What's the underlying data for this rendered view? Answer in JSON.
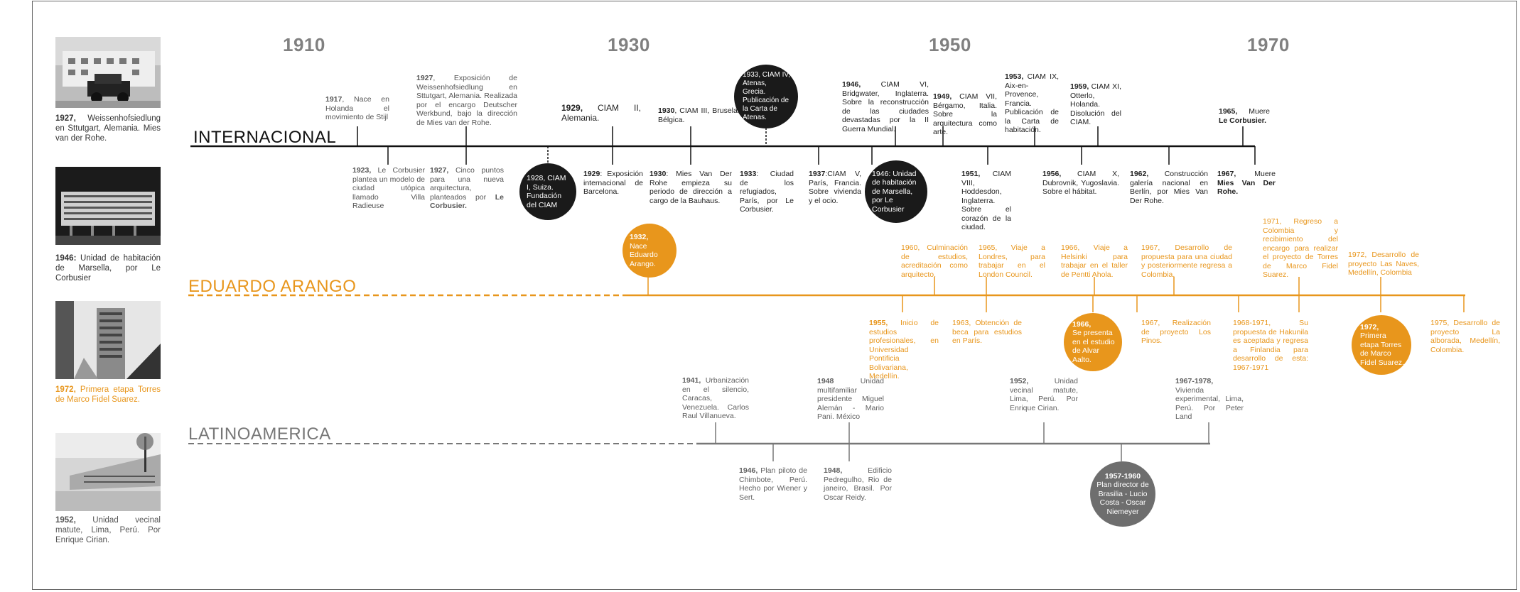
{
  "decades": [
    "1910",
    "1930",
    "1950",
    "1970"
  ],
  "sections": {
    "internacional": "INTERNACIONAL",
    "arango": "EDUARDO ARANGO",
    "latinoamerica": "LATINOAMERICA"
  },
  "colors": {
    "black": "#1a1a1a",
    "orange": "#e8961c",
    "grey": "#6e6e6e"
  },
  "captions": [
    {
      "year": "1927,",
      "text": " Weissenhofsiedlung en Sttutgart, Alemania. Mies van der Rohe."
    },
    {
      "year": "1946:",
      "text": " Unidad de habitación de Marsella, por Le Corbusier"
    },
    {
      "year": "1972,",
      "text": " Primera etapa Torres de Marco Fidel Suarez."
    },
    {
      "year": "1952,",
      "text": " Unidad vecinal matute, Lima, Perú. Por Enrique Cirian."
    }
  ],
  "internacional_top": [
    {
      "year": "1917",
      "text": ", Nace en Holanda el movimiento de Stijl"
    },
    {
      "year": "1927",
      "text": ", Exposición de Weissenhofsiedlung en Sttutgart, Alemania. Realizada por el encargo Deutscher Werkbund, bajo la dirección de Mies van der Rohe."
    },
    {
      "year": "1929,",
      "text": " CIAM II, Alemania."
    },
    {
      "year": "1930",
      "text": ", CIAM III, Bruselas, Bélgica."
    },
    {
      "year": "1946,",
      "text": " CIAM VI, Bridgwater, Inglaterra. Sobre la reconstrucción de las ciudades devastadas por la II Guerra Mundial."
    },
    {
      "year": "1949,",
      "text": " CIAM VII, Bérgamo, Italia. Sobre la arquitectura como arte."
    },
    {
      "year": "1953,",
      "text": " CIAM IX, Aix-en-Provence, Francia. Publicación de la Carta de habitación."
    },
    {
      "year": "1959,",
      "text": " CIAM XI, Otterlo, Holanda. Disolución del CIAM."
    },
    {
      "year": "1965,",
      "text": " Muere ",
      "bold": "Le Corbusier."
    }
  ],
  "internacional_bottom": [
    {
      "year": "1923,",
      "text": " Le Corbusier plantea un modelo de ciudad utópica llamado Villa Radieuse"
    },
    {
      "year": "1927,",
      "text": " Cinco puntos para una nueva arquitectura, planteados por ",
      "bold": "Le Corbusier."
    },
    {
      "year": "1929",
      "text": ": Exposición internacional de Barcelona."
    },
    {
      "year": "1930",
      "text": ": Mies Van Der Rohe empieza su periodo de dirección a cargo de la Bauhaus."
    },
    {
      "year": "1933",
      "text": ": Ciudad de los refugiados, París, por Le Corbusier."
    },
    {
      "year": "1937",
      "text": ":CIAM V, París, Francia. Sobre vivienda y el ocio."
    },
    {
      "year": "1951,",
      "text": " CIAM VIII, Hoddesdon, Inglaterra. Sobre el corazón de la ciudad."
    },
    {
      "year": "1956,",
      "text": " CIAM X, Dubrovnik, Yugoslavia. Sobre el hábitat."
    },
    {
      "year": "1962,",
      "text": " Construcción galería nacional en Berlín, por Mies Van Der Rohe."
    },
    {
      "year": "1967,",
      "text": " Muere ",
      "bold": "Mies Van Der Rohe."
    }
  ],
  "internacional_circles": [
    {
      "text": "1933, CIAM IV, Atenas, Grecia. Publicación de la Carta de Atenas."
    },
    {
      "text": "1928, CIAM I, Suiza. Fundación del CIAM"
    },
    {
      "text": "1946: Unidad de habitación de Marsella, por Le Corbusier"
    }
  ],
  "arango_top": [
    {
      "text": "1960, Culminación de estudios, acreditación como arquitecto."
    },
    {
      "text": "1965, Viaje a Londres, para trabajar en el London Council."
    },
    {
      "text": "1966, Viaje a Helsinki para trabajar en el taller de Pentti Ahola."
    },
    {
      "text": "1967, Desarrollo de propuesta para una ciudad y posteriormente regresa a Colombia."
    },
    {
      "text": "1971, Regreso a Colombia y recibimiento del encargo para realizar el proyecto de Torres de Marco Fidel Suarez."
    },
    {
      "text": "1972, Desarrollo de proyecto Las Naves, Medellín, Colombia"
    }
  ],
  "arango_bottom": [
    {
      "year": "1955,",
      "text": " Inicio de estudios profesionales, en Universidad Pontificia Bolivariana, Medellín."
    },
    {
      "text": "1963, Obtención de beca para estudios en París."
    },
    {
      "text": "1967, Realización de proyecto Los Pinos."
    },
    {
      "text": "1968-1971, Su propuesta de Hakunila es aceptada y regresa a Finlandia para desarrollo de esta: 1967-1971"
    },
    {
      "text": "1975, Desarrollo de proyecto La alborada, Medellín, Colombia."
    }
  ],
  "arango_circles": [
    {
      "year": "1932,",
      "text": " Nace Eduardo Arango."
    },
    {
      "year": "1966,",
      "text": " Se presenta en el estudio de Alvar Aalto."
    },
    {
      "year": "1972,",
      "text": " Primera etapa Torres de Marco Fidel Suarez."
    }
  ],
  "latam_top": [
    {
      "year": "1941,",
      "text": " Urbanización en el silencio, Caracas, Venezuela. Carlos Raul Villanueva."
    },
    {
      "year": "1948",
      "text": " Unidad multifamiliar presidente Miguel Alemán - Mario Pani. México"
    },
    {
      "year": "1952,",
      "text": " Unidad vecinal matute, Lima, Perú. Por Enrique Cirian."
    },
    {
      "year": "1967-1978,",
      "text": " Vivienda experimental, Lima, Perú. Por Peter Land"
    }
  ],
  "latam_bottom": [
    {
      "year": "1946,",
      "text": " Plan piloto de Chimbote, Perú. Hecho por Wiener y Sert."
    },
    {
      "year": "1948,",
      "text": " Edificio Pedregulho, Rio de janeiro, Brasil. Por Oscar Reidy."
    }
  ],
  "latam_circles": [
    {
      "bold": "1957-1960",
      "text": "Plan director de Brasilia - Lucio Costa - Oscar Niemeyer"
    }
  ]
}
